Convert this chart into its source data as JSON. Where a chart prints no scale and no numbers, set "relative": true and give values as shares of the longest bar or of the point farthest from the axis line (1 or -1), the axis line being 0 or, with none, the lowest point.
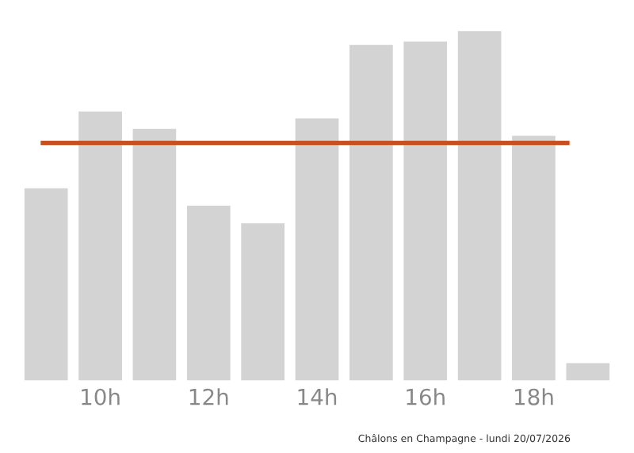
{
  "chart_data": {
    "type": "bar",
    "relative": true,
    "categories": [
      null,
      "10h",
      null,
      "12h",
      null,
      "14h",
      null,
      "16h",
      null,
      "18h",
      null
    ],
    "values": [
      0.55,
      0.77,
      0.72,
      0.5,
      0.45,
      0.75,
      0.96,
      0.97,
      1,
      0.7,
      0.05
    ],
    "color": "#d3d3d3",
    "ref_lines": [
      {
        "axis": "y",
        "value": 0.68,
        "color": "#c8501e"
      }
    ],
    "annotations": [
      "Châlons en Champagne - lundi 20/07/2026"
    ],
    "grid": false,
    "legend": false
  }
}
